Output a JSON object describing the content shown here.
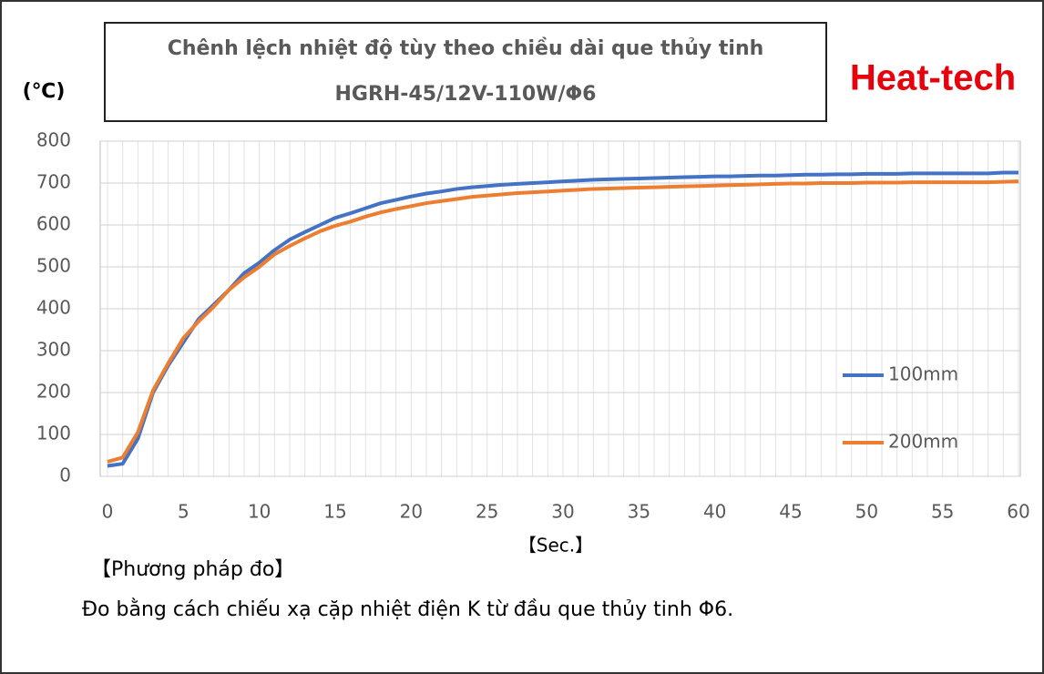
{
  "chart_data": {
    "type": "line",
    "title": "Chênh lệch nhiệt độ tùy theo chiều dài que thủy tinh",
    "subtitle": "HGRH-45/12V-110W/Φ6",
    "brand": "Heat-tech",
    "y_label": "(℃)",
    "x_label": "【Sec.】",
    "note_title": "【Phương pháp đo】",
    "note": "Đo bằng cách chiếu xạ cặp nhiệt điện K từ đầu que thủy tinh Φ6.",
    "x": [
      0,
      1,
      2,
      3,
      4,
      5,
      6,
      7,
      8,
      9,
      10,
      11,
      12,
      13,
      14,
      15,
      16,
      17,
      18,
      19,
      20,
      21,
      22,
      23,
      24,
      25,
      26,
      27,
      28,
      29,
      30,
      31,
      32,
      33,
      34,
      35,
      36,
      37,
      38,
      39,
      40,
      41,
      42,
      43,
      44,
      45,
      46,
      47,
      48,
      49,
      50,
      51,
      52,
      53,
      54,
      55,
      56,
      57,
      58,
      59,
      60
    ],
    "series": [
      {
        "name": "100mm",
        "color": "#4472c4",
        "values": [
          25,
          30,
          90,
          200,
          265,
          320,
          375,
          410,
          445,
          485,
          510,
          540,
          565,
          583,
          600,
          617,
          628,
          640,
          652,
          660,
          668,
          675,
          680,
          686,
          690,
          693,
          696,
          698,
          700,
          702,
          704,
          706,
          708,
          709,
          710,
          711,
          712,
          713,
          714,
          715,
          716,
          716,
          717,
          718,
          718,
          719,
          720,
          720,
          721,
          721,
          722,
          722,
          722,
          723,
          723,
          723,
          723,
          723,
          723,
          725,
          725
        ]
      },
      {
        "name": "200mm",
        "color": "#ed7d31",
        "values": [
          35,
          45,
          105,
          205,
          270,
          330,
          370,
          405,
          445,
          475,
          500,
          530,
          550,
          568,
          585,
          598,
          608,
          620,
          630,
          638,
          645,
          652,
          657,
          662,
          667,
          670,
          673,
          676,
          678,
          680,
          682,
          684,
          686,
          687,
          688,
          689,
          690,
          691,
          692,
          693,
          694,
          695,
          696,
          697,
          698,
          699,
          699,
          700,
          700,
          700,
          701,
          701,
          701,
          702,
          702,
          702,
          702,
          702,
          702,
          703,
          704
        ]
      }
    ],
    "xlim": [
      0,
      60
    ],
    "xticks": [
      0,
      5,
      10,
      15,
      20,
      25,
      30,
      35,
      40,
      45,
      50,
      55,
      60
    ],
    "ylim": [
      0,
      800
    ],
    "yticks": [
      0,
      100,
      200,
      300,
      400,
      500,
      600,
      700,
      800
    ],
    "grid": true,
    "legend": "right"
  }
}
